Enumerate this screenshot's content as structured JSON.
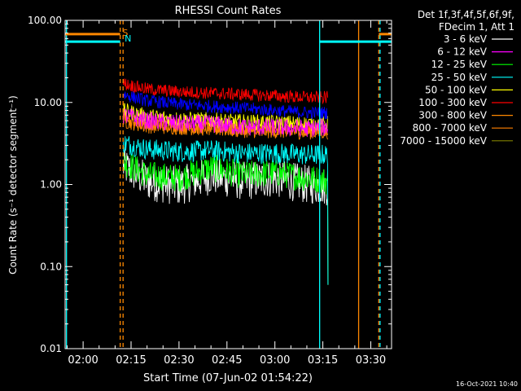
{
  "chart_data": {
    "type": "line",
    "title": "RHESSI Count Rates",
    "xlabel": "Start Time (07-Jun-02 01:54:22)",
    "ylabel": "Count Rate (s⁻¹ detector segment⁻¹)",
    "yscale": "log",
    "ylim": [
      0.01,
      100
    ],
    "xlim_min": [
      -5.63,
      96.5
    ],
    "y_ticks": [
      {
        "v": 0.01,
        "label": "0.01"
      },
      {
        "v": 0.1,
        "label": "0.10"
      },
      {
        "v": 1,
        "label": "1.00"
      },
      {
        "v": 10,
        "label": "10.00"
      },
      {
        "v": 100,
        "label": "100.00"
      }
    ],
    "x_ticks": [
      {
        "v": 0,
        "label": "02:00"
      },
      {
        "v": 15,
        "label": "02:15"
      },
      {
        "v": 30,
        "label": "02:30"
      },
      {
        "v": 45,
        "label": "02:45"
      },
      {
        "v": 60,
        "label": "03:00"
      },
      {
        "v": 75,
        "label": "03:15"
      },
      {
        "v": 90,
        "label": "03:30"
      }
    ],
    "legend_header": [
      "Det 1f,3f,4f,5f,6f,9f,",
      "FDecim 1, Att 1"
    ],
    "series": [
      {
        "name": "3 - 6 keV",
        "color": "#ffffff",
        "x": [
          12.5,
          20,
          30,
          40,
          50,
          60,
          70,
          76.5
        ],
        "values": [
          1.7,
          1.1,
          0.95,
          1.3,
          1.1,
          1.2,
          1.0,
          0.95
        ],
        "noise": 0.55
      },
      {
        "name": "6 - 12 keV",
        "color": "#ff00ff",
        "x": [
          12.5,
          20,
          30,
          40,
          50,
          60,
          70,
          76.5
        ],
        "values": [
          7.0,
          6.0,
          5.5,
          5.5,
          5.0,
          5.0,
          4.8,
          5.0
        ],
        "noise": 0.25
      },
      {
        "name": "12 - 25 keV",
        "color": "#00ff00",
        "x": [
          12.5,
          20,
          30,
          40,
          50,
          60,
          70,
          76.5
        ],
        "values": [
          1.9,
          1.3,
          1.2,
          1.6,
          1.3,
          1.4,
          1.2,
          1.1
        ],
        "noise": 0.4
      },
      {
        "name": "25 - 50 keV",
        "color": "#00ffff",
        "x": [
          12.5,
          20,
          30,
          40,
          50,
          60,
          70,
          76.5
        ],
        "values": [
          3.2,
          2.7,
          2.5,
          2.6,
          2.4,
          2.4,
          2.3,
          2.3
        ],
        "noise": 0.3
      },
      {
        "name": "50 - 100 keV",
        "color": "#ffff00",
        "x": [
          12.5,
          20,
          30,
          40,
          50,
          60,
          70,
          76.5
        ],
        "values": [
          8.0,
          6.8,
          6.3,
          6.1,
          5.8,
          5.7,
          5.5,
          5.5
        ],
        "noise": 0.22
      },
      {
        "name": "100 - 300 keV",
        "color": "#ff0000",
        "x": [
          12.5,
          20,
          30,
          40,
          50,
          60,
          70,
          76.5
        ],
        "values": [
          17,
          14.5,
          13.5,
          13,
          12.5,
          12,
          11.5,
          11.5
        ],
        "noise": 0.18
      },
      {
        "name": "300 - 800 keV",
        "color": "#ff8800",
        "x": [
          12.5,
          20,
          30,
          40,
          50,
          60,
          70,
          76.5
        ],
        "values": [
          6.0,
          5.2,
          5.0,
          4.8,
          4.6,
          4.5,
          4.4,
          4.4
        ],
        "noise": 0.22
      },
      {
        "name": "800 - 7000 keV",
        "color": "#ff8000",
        "x": [
          12.5,
          20,
          30,
          40,
          50,
          60,
          70,
          76.5
        ],
        "values": [
          6.5,
          5.5,
          5.2,
          5.0,
          4.8,
          4.7,
          4.6,
          4.6
        ],
        "noise": 0.2
      },
      {
        "name": "7000 - 15000 keV",
        "color": "#808000",
        "x": [],
        "values": [],
        "noise": 0
      }
    ],
    "extra_series": [
      {
        "name": "blue-band",
        "color": "#0000ff",
        "x": [
          12.5,
          20,
          30,
          40,
          50,
          60,
          70,
          76.5
        ],
        "values": [
          12.5,
          10.5,
          9.5,
          9.0,
          8.5,
          8.0,
          7.5,
          7.5
        ],
        "noise": 0.18
      }
    ],
    "annotations": [
      {
        "text": "S",
        "color": "#ff8800",
        "x": 12.3
      },
      {
        "text": "N",
        "color": "#00ffff",
        "x": 13.0
      }
    ],
    "timestamp": "16-Oct-2021 10:40"
  }
}
